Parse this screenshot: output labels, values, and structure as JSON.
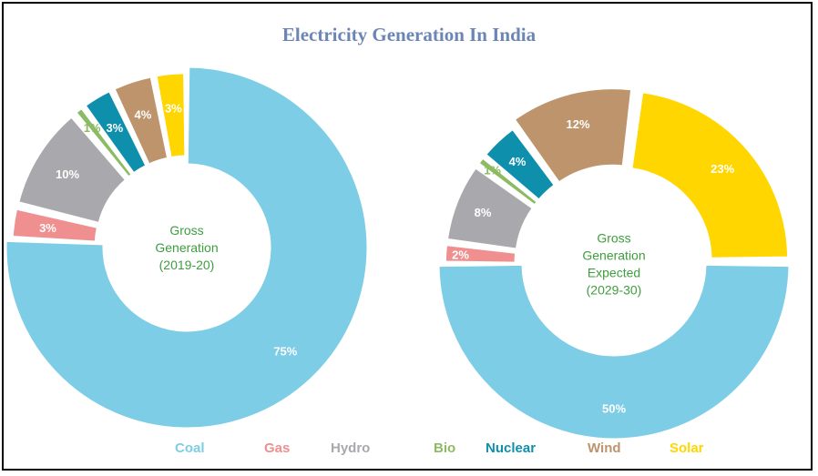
{
  "chart_data": {
    "type": "pie",
    "title": "Electricity Generation In India",
    "colors": {
      "Coal": "#7ecde6",
      "Gas": "#ef8f8f",
      "Hydro": "#a9a9ad",
      "Bio": "#8dbb63",
      "Nuclear": "#0e90ad",
      "Wind": "#bd946c",
      "Solar": "#ffd600"
    },
    "legend": [
      "Coal",
      "Gas",
      "Hydro",
      "Bio",
      "Nuclear",
      "Wind",
      "Solar"
    ],
    "legend_colors": [
      "#7ecde6",
      "#ef8f8f",
      "#a9a9ad",
      "#8dbb63",
      "#0e90ad",
      "#bd946c",
      "#ffd600"
    ],
    "charts": [
      {
        "center_label": [
          "Gross",
          "Generation",
          "(2019-20)"
        ],
        "categories": [
          "Coal",
          "Gas",
          "Hydro",
          "Bio",
          "Nuclear",
          "Wind",
          "Solar"
        ],
        "values": [
          75,
          3,
          10,
          1,
          3,
          4,
          3
        ],
        "labels": [
          "75%",
          "3%",
          "10%",
          "1%",
          "3%",
          "4%",
          "3%"
        ]
      },
      {
        "center_label": [
          "Gross",
          "Generation",
          "Expected",
          "(2029-30)"
        ],
        "categories": [
          "Coal",
          "Gas",
          "Hydro",
          "Bio",
          "Nuclear",
          "Wind",
          "Solar"
        ],
        "values": [
          50,
          2,
          8,
          1,
          4,
          12,
          23
        ],
        "labels": [
          "50%",
          "2%",
          "8%",
          "1%",
          "4%",
          "12%",
          "23%"
        ]
      }
    ]
  }
}
